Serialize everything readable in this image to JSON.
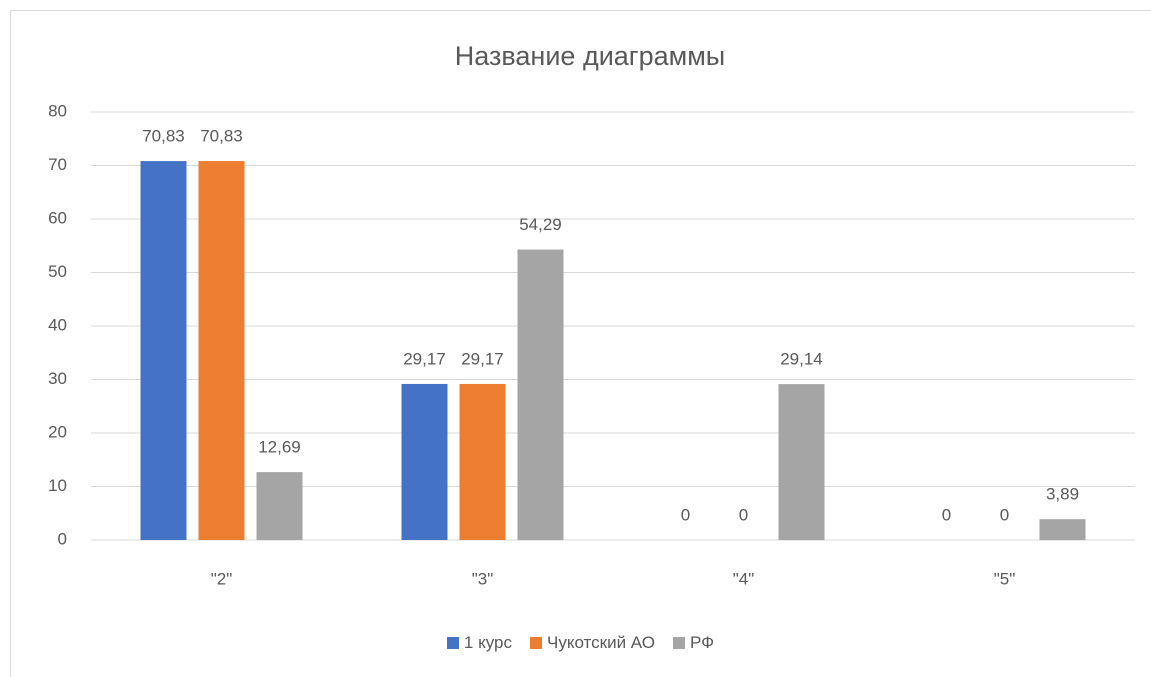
{
  "chart_data": {
    "type": "bar",
    "title": "Название диаграммы",
    "categories": [
      "\"2\"",
      "\"3\"",
      "\"4\"",
      "\"5\""
    ],
    "series": [
      {
        "name": "1 курс",
        "color": "#4472c4",
        "values": [
          70.83,
          29.17,
          0,
          0
        ],
        "value_labels": [
          "70,83",
          "29,17",
          "0",
          "0"
        ]
      },
      {
        "name": "Чукотский АО",
        "color": "#ed7d31",
        "values": [
          70.83,
          29.17,
          0,
          0
        ],
        "value_labels": [
          "70,83",
          "29,17",
          "0",
          "0"
        ]
      },
      {
        "name": "РФ",
        "color": "#a5a5a5",
        "values": [
          12.69,
          54.29,
          29.14,
          3.89
        ],
        "value_labels": [
          "12,69",
          "54,29",
          "29,14",
          "3,89"
        ]
      }
    ],
    "ylim": [
      0,
      80
    ],
    "yticks": [
      0,
      10,
      20,
      30,
      40,
      50,
      60,
      70,
      80
    ],
    "grid": true,
    "legend": "bottom"
  }
}
